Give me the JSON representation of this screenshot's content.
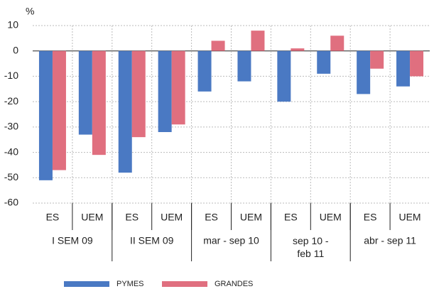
{
  "chart_data": {
    "type": "bar",
    "y_unit": "%",
    "categories": [
      "ES",
      "UEM",
      "ES",
      "UEM",
      "ES",
      "UEM",
      "ES",
      "UEM",
      "ES",
      "UEM"
    ],
    "groups": [
      "I SEM 09",
      "II SEM 09",
      "mar - sep 10",
      "sep 10 -\nfeb 11",
      "abr - sep 11"
    ],
    "series": [
      {
        "name": "PYMES",
        "color": "#4a79c3",
        "values": [
          -51,
          -33,
          -48,
          -32,
          -16,
          -12,
          -20,
          -9,
          -17,
          -14
        ]
      },
      {
        "name": "GRANDES",
        "color": "#e06f7f",
        "values": [
          -47,
          -41,
          -34,
          -29,
          4,
          8,
          1,
          6,
          -7,
          -10
        ]
      }
    ],
    "ylim": [
      -60,
      10
    ],
    "yticks": [
      10,
      0,
      -10,
      -20,
      -30,
      -40,
      -50,
      -60
    ],
    "grid": true
  }
}
